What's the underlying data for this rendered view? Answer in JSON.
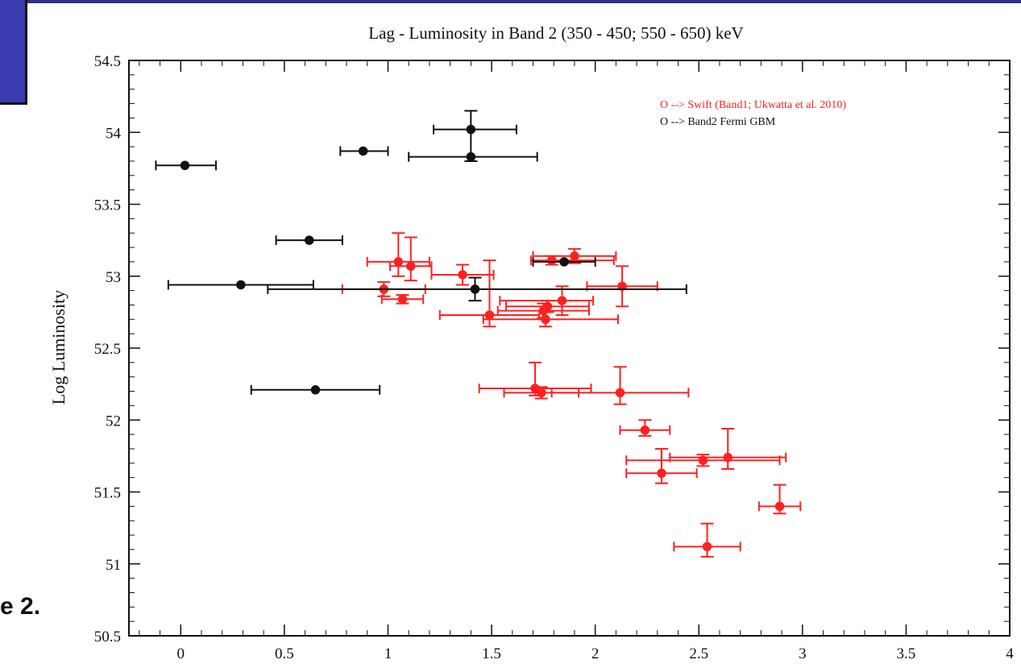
{
  "slide": {
    "fragment_text": "e 2."
  },
  "chart_data": {
    "type": "scatter",
    "title": "Lag - Luminosity in Band 2 (350 - 450; 550 - 650) keV",
    "xlabel": "",
    "ylabel": "Log Luminosity",
    "xlim": [
      -0.25,
      4.0
    ],
    "ylim": [
      50.5,
      54.5
    ],
    "x_ticks": [
      0,
      0.5,
      1,
      1.5,
      2,
      2.5,
      3,
      3.5,
      4
    ],
    "y_ticks": [
      50.5,
      51,
      51.5,
      52,
      52.5,
      53,
      53.5,
      54,
      54.5
    ],
    "legend_position": "top-right",
    "colors": {
      "swift": "#ff2020",
      "fermi": "#111111"
    },
    "series": [
      {
        "name": "O --> Swift (Band1; Ukwatta et al. 2010)",
        "color": "#ff2020",
        "points": [
          {
            "x": 1.05,
            "y": 53.1,
            "xerr": [
              0.15,
              0.15
            ],
            "yerr": [
              0.2,
              0.1
            ]
          },
          {
            "x": 1.11,
            "y": 53.07,
            "xerr": [
              0.1,
              0.1
            ],
            "yerr": [
              0.2,
              0.1
            ]
          },
          {
            "x": 0.98,
            "y": 52.91,
            "xerr": [
              0.2,
              0.2
            ],
            "yerr": [
              0.05,
              0.05
            ]
          },
          {
            "x": 1.07,
            "y": 52.84,
            "xerr": [
              0.1,
              0.1
            ],
            "yerr": [
              0.03,
              0.03
            ]
          },
          {
            "x": 1.36,
            "y": 53.01,
            "xerr": [
              0.15,
              0.15
            ],
            "yerr": [
              0.07,
              0.07
            ]
          },
          {
            "x": 1.49,
            "y": 52.73,
            "xerr": [
              0.24,
              0.24
            ],
            "yerr": [
              0.38,
              0.08
            ]
          },
          {
            "x": 1.75,
            "y": 52.76,
            "xerr": [
              0.22,
              0.22
            ],
            "yerr": [
              0.05,
              0.05
            ]
          },
          {
            "x": 1.76,
            "y": 52.7,
            "xerr": [
              0.3,
              0.35
            ],
            "yerr": [
              0.05,
              0.05
            ]
          },
          {
            "x": 1.77,
            "y": 52.79,
            "xerr": [
              0.2,
              0.2
            ],
            "yerr": [
              0.04,
              0.04
            ]
          },
          {
            "x": 1.84,
            "y": 52.83,
            "xerr": [
              0.3,
              0.15
            ],
            "yerr": [
              0.1,
              0.1
            ]
          },
          {
            "x": 1.79,
            "y": 53.11,
            "xerr": [
              0.1,
              0.3
            ],
            "yerr": [
              0.03,
              0.03
            ]
          },
          {
            "x": 1.9,
            "y": 53.14,
            "xerr": [
              0.2,
              0.2
            ],
            "yerr": [
              0.05,
              0.05
            ]
          },
          {
            "x": 2.13,
            "y": 52.93,
            "xerr": [
              0.17,
              0.17
            ],
            "yerr": [
              0.14,
              0.14
            ]
          },
          {
            "x": 1.71,
            "y": 52.22,
            "xerr": [
              0.27,
              0.27
            ],
            "yerr": [
              0.18,
              0.05
            ]
          },
          {
            "x": 1.74,
            "y": 52.19,
            "xerr": [
              0.18,
              0.18
            ],
            "yerr": [
              0.04,
              0.04
            ]
          },
          {
            "x": 2.12,
            "y": 52.19,
            "xerr": [
              0.33,
              0.33
            ],
            "yerr": [
              0.18,
              0.08
            ]
          },
          {
            "x": 2.24,
            "y": 51.93,
            "xerr": [
              0.12,
              0.12
            ],
            "yerr": [
              0.07,
              0.04
            ]
          },
          {
            "x": 2.52,
            "y": 51.72,
            "xerr": [
              0.37,
              0.37
            ],
            "yerr": [
              0.04,
              0.04
            ]
          },
          {
            "x": 2.64,
            "y": 51.74,
            "xerr": [
              0.28,
              0.28
            ],
            "yerr": [
              0.2,
              0.08
            ]
          },
          {
            "x": 2.32,
            "y": 51.63,
            "xerr": [
              0.17,
              0.17
            ],
            "yerr": [
              0.17,
              0.07
            ]
          },
          {
            "x": 2.89,
            "y": 51.4,
            "xerr": [
              0.1,
              0.1
            ],
            "yerr": [
              0.15,
              0.05
            ]
          },
          {
            "x": 2.54,
            "y": 51.12,
            "xerr": [
              0.16,
              0.16
            ],
            "yerr": [
              0.16,
              0.07
            ]
          }
        ]
      },
      {
        "name": "O --> Band2 Fermi GBM",
        "color": "#111111",
        "points": [
          {
            "x": 0.02,
            "y": 53.77,
            "xerr": [
              0.14,
              0.15
            ],
            "yerr": [
              0.0,
              0.0
            ]
          },
          {
            "x": 0.88,
            "y": 53.87,
            "xerr": [
              0.11,
              0.12
            ],
            "yerr": [
              0.0,
              0.0
            ]
          },
          {
            "x": 1.4,
            "y": 54.02,
            "xerr": [
              0.18,
              0.22
            ],
            "yerr": [
              0.13,
              0.22
            ]
          },
          {
            "x": 1.4,
            "y": 53.83,
            "xerr": [
              0.3,
              0.32
            ],
            "yerr": [
              0.0,
              0.0
            ]
          },
          {
            "x": 0.62,
            "y": 53.25,
            "xerr": [
              0.16,
              0.16
            ],
            "yerr": [
              0.0,
              0.0
            ]
          },
          {
            "x": 0.29,
            "y": 52.94,
            "xerr": [
              0.35,
              0.35
            ],
            "yerr": [
              0.0,
              0.0
            ]
          },
          {
            "x": 1.42,
            "y": 52.91,
            "xerr": [
              1.0,
              1.02
            ],
            "yerr": [
              0.08,
              0.08
            ]
          },
          {
            "x": 1.85,
            "y": 53.1,
            "xerr": [
              0.15,
              0.15
            ],
            "yerr": [
              0.0,
              0.0
            ]
          },
          {
            "x": 0.65,
            "y": 52.21,
            "xerr": [
              0.31,
              0.31
            ],
            "yerr": [
              0.0,
              0.0
            ]
          }
        ]
      }
    ]
  }
}
